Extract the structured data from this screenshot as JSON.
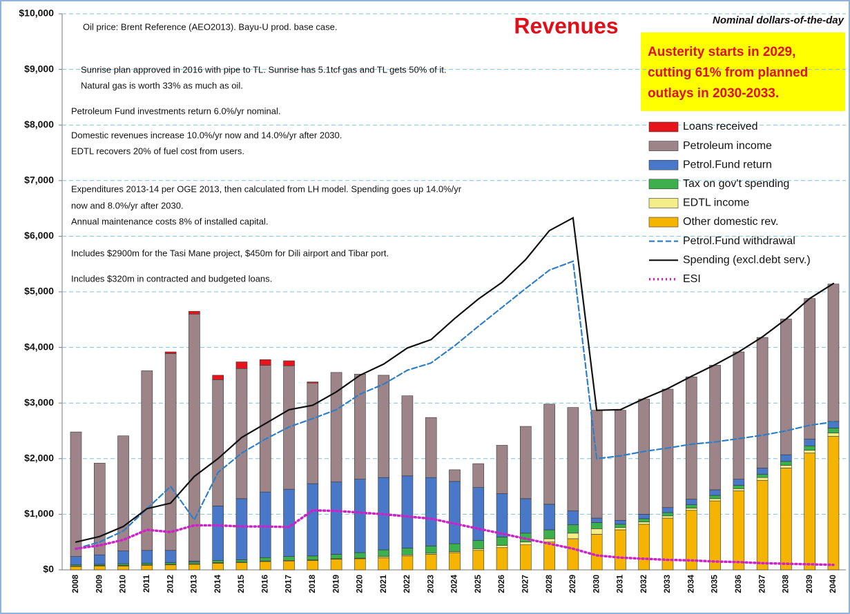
{
  "chart_data": {
    "type": "bar",
    "title": "Revenues",
    "subtitle": "Nominal dollars-of-the-day",
    "annotations": [
      "Oil price: Brent Reference (AEO2013).   Bayu-U prod. base case.",
      "Sunrise plan approved in 2016 with pipe to TL. Sunrise has 5.1tcf gas and TL gets 50% of it.",
      "Natural gas is worth 33% as much as oil.",
      "Petroleum Fund investments return 6.0%/yr nominal.",
      "Domestic revenues increase 10.0%/yr now and 14.0%/yr after 2030.",
      "EDTL recovers 20% of fuel cost from users.",
      "Expenditures 2013-14 per OGE 2013, then calculated from LH model. Spending goes up 14.0%/yr",
      "now and 8.0%/yr after 2030.",
      "Annual maintenance costs 8% of installed capital.",
      "Includes $2900m for the Tasi Mane project, $450m for Dili airport and Tibar port.",
      "Includes $320m in contracted and budgeted loans."
    ],
    "callout": [
      "Austerity starts in 2029,",
      "cutting 61% from planned",
      "outlays in 2030-2033."
    ],
    "categories": [
      "2008",
      "2009",
      "2010",
      "2011",
      "2012",
      "2013",
      "2014",
      "2015",
      "2016",
      "2017",
      "2018",
      "2019",
      "2020",
      "2021",
      "2022",
      "2023",
      "2024",
      "2025",
      "2026",
      "2027",
      "2028",
      "2029",
      "2030",
      "2031",
      "2032",
      "2033",
      "2034",
      "2035",
      "2036",
      "2037",
      "2038",
      "2039",
      "2040"
    ],
    "series": [
      {
        "name": "Loans received",
        "kind": "bar",
        "color": "#e8141c",
        "values": [
          0,
          0,
          0,
          0,
          30,
          50,
          80,
          120,
          100,
          90,
          20,
          0,
          0,
          0,
          0,
          0,
          0,
          0,
          0,
          0,
          0,
          0,
          0,
          0,
          0,
          0,
          0,
          0,
          0,
          0,
          0,
          0,
          0
        ]
      },
      {
        "name": "Petroleum income",
        "kind": "bar",
        "color": "#9c8488",
        "values": [
          2240,
          1650,
          2070,
          3230,
          3540,
          4440,
          2270,
          2340,
          2280,
          2220,
          1810,
          1970,
          1890,
          1840,
          1440,
          1080,
          210,
          430,
          870,
          1300,
          1800,
          1860,
          1940,
          1980,
          2070,
          2130,
          2200,
          2240,
          2290,
          2350,
          2440,
          2530,
          2470
        ]
      },
      {
        "name": "Petrol.Fund return",
        "kind": "bar",
        "color": "#4a78c8",
        "values": [
          150,
          170,
          230,
          230,
          220,
          20,
          980,
          1100,
          1180,
          1210,
          1300,
          1300,
          1320,
          1300,
          1300,
          1230,
          1120,
          950,
          780,
          620,
          460,
          250,
          80,
          70,
          80,
          90,
          100,
          100,
          110,
          110,
          120,
          120,
          120
        ]
      },
      {
        "name": "Tax on gov't spending",
        "kind": "bar",
        "color": "#3cb04c",
        "values": [
          20,
          20,
          30,
          30,
          30,
          30,
          40,
          40,
          60,
          70,
          70,
          80,
          100,
          120,
          120,
          130,
          140,
          150,
          150,
          160,
          160,
          150,
          110,
          60,
          60,
          60,
          60,
          60,
          60,
          60,
          70,
          80,
          90
        ]
      },
      {
        "name": "EDTL income",
        "kind": "bar",
        "color": "#f3ee8a",
        "values": [
          10,
          10,
          10,
          10,
          10,
          10,
          10,
          10,
          10,
          10,
          10,
          10,
          10,
          20,
          20,
          20,
          20,
          30,
          40,
          50,
          60,
          100,
          100,
          40,
          40,
          40,
          40,
          40,
          40,
          50,
          50,
          50,
          60
        ]
      },
      {
        "name": "Other domestic rev.",
        "kind": "bar",
        "color": "#f4b400",
        "values": [
          60,
          70,
          70,
          80,
          90,
          100,
          120,
          130,
          150,
          160,
          170,
          190,
          200,
          220,
          250,
          280,
          310,
          350,
          400,
          450,
          500,
          560,
          640,
          720,
          820,
          930,
          1070,
          1240,
          1420,
          1610,
          1830,
          2100,
          2400
        ]
      },
      {
        "name": "Petrol.Fund withdrawal",
        "kind": "line",
        "style": "dashed",
        "color": "#2f7fc8",
        "values": [
          380,
          500,
          700,
          1100,
          1500,
          900,
          1750,
          2100,
          2350,
          2570,
          2720,
          2880,
          3160,
          3340,
          3590,
          3720,
          4030,
          4380,
          4720,
          5060,
          5390,
          5550,
          2000,
          2050,
          2130,
          2190,
          2260,
          2300,
          2360,
          2420,
          2500,
          2600,
          2660
        ]
      },
      {
        "name": "Spending (excl.debt serv.)",
        "kind": "line",
        "style": "solid",
        "color": "#111111",
        "values": [
          500,
          600,
          780,
          1100,
          1200,
          1680,
          2000,
          2380,
          2630,
          2880,
          2960,
          3200,
          3500,
          3700,
          3990,
          4140,
          4520,
          4870,
          5170,
          5580,
          6100,
          6330,
          2870,
          2880,
          3080,
          3260,
          3480,
          3690,
          3920,
          4190,
          4510,
          4880,
          5150
        ]
      },
      {
        "name": "ESI",
        "kind": "line",
        "style": "dotted",
        "color": "#d020c8",
        "values": [
          380,
          440,
          540,
          720,
          680,
          800,
          800,
          780,
          780,
          770,
          1070,
          1060,
          1030,
          1000,
          960,
          920,
          830,
          740,
          650,
          560,
          470,
          380,
          260,
          220,
          200,
          180,
          170,
          150,
          140,
          120,
          110,
          100,
          90
        ]
      }
    ],
    "ylim": [
      0,
      10000
    ],
    "yticks": [
      {
        "value": 0,
        "label": "$0"
      },
      {
        "value": 1000,
        "label": "$1,000"
      },
      {
        "value": 2000,
        "label": "$2,000"
      },
      {
        "value": 3000,
        "label": "$3,000"
      },
      {
        "value": 4000,
        "label": "$4,000"
      },
      {
        "value": 5000,
        "label": "$5,000"
      },
      {
        "value": 6000,
        "label": "$6,000"
      },
      {
        "value": 7000,
        "label": "$7,000"
      },
      {
        "value": 8000,
        "label": "$8,000"
      },
      {
        "value": 9000,
        "label": "$9,000"
      },
      {
        "value": 10000,
        "label": "$10,000"
      }
    ],
    "grid": true
  }
}
